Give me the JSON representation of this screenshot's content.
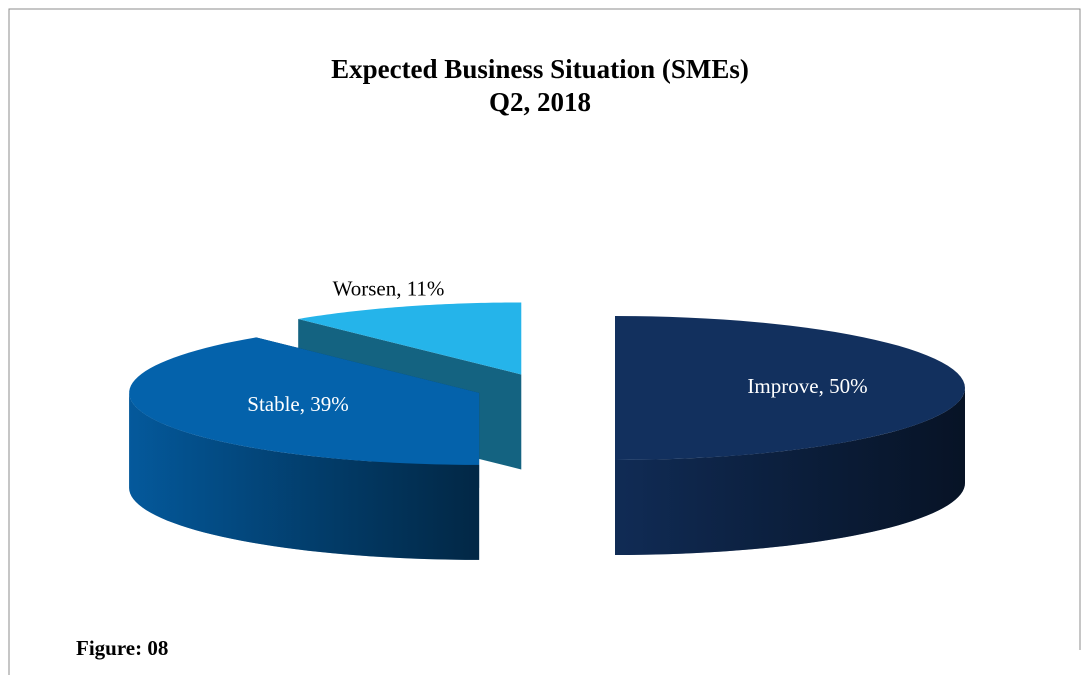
{
  "chart_data": {
    "type": "pie3d",
    "title": "Expected Business Situation (SMEs)",
    "subtitle": "Q2, 2018",
    "caption": "Figure: 08",
    "categories": [
      "Improve",
      "Stable",
      "Worsen"
    ],
    "values": [
      50,
      39,
      11
    ],
    "value_labels": [
      "Improve, 50%",
      "Stable, 39%",
      "Worsen, 11%"
    ],
    "colors": [
      "#12305e",
      "#0462ab",
      "#25b4ea"
    ],
    "exploded": true
  }
}
